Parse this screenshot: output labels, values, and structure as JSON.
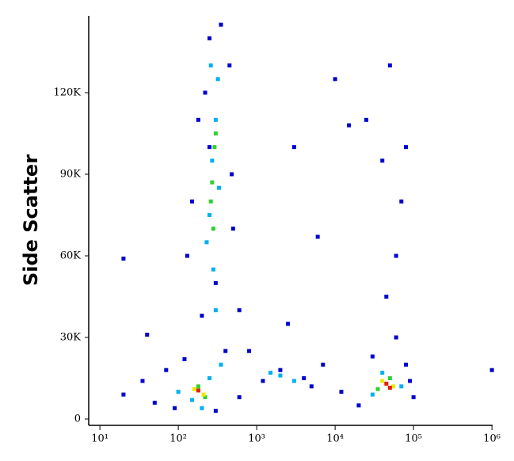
{
  "chart_data": {
    "type": "scatter",
    "y_label": "Side Scatter",
    "xscale": "log",
    "xlim": [
      7.2,
      1020000
    ],
    "ylim": [
      -2330,
      148250
    ],
    "xticks": [
      {
        "value": 10,
        "label": "10¹"
      },
      {
        "value": 100,
        "label": "10²"
      },
      {
        "value": 1000,
        "label": "10³"
      },
      {
        "value": 10000,
        "label": "10⁴"
      },
      {
        "value": 100000,
        "label": "10⁵"
      },
      {
        "value": 1000000,
        "label": "10⁶"
      }
    ],
    "yticks": [
      0,
      {
        "value": 30000,
        "label": "30K"
      },
      {
        "value": 60000,
        "label": "60K"
      },
      {
        "value": 90000,
        "label": "90K"
      },
      {
        "value": 120000,
        "label": "120K"
      }
    ],
    "series": [
      {
        "color": "#0000d0",
        "x": [
          20,
          35,
          50,
          70,
          90,
          120,
          300,
          600,
          800,
          600,
          130,
          150,
          180,
          450,
          500,
          350,
          250,
          2000,
          1200,
          5000,
          7000,
          4000,
          12000,
          20000,
          80000,
          100000,
          90000,
          30000,
          60000,
          45000,
          70000,
          50000,
          25000,
          15000,
          6000,
          3000,
          20,
          1000000,
          40,
          2500,
          80000,
          40000,
          10000,
          60000,
          300,
          400,
          200,
          250,
          220,
          480
        ],
        "values": [
          9000,
          14000,
          6000,
          18000,
          4000,
          22000,
          3000,
          8000,
          25000,
          40000,
          60000,
          80000,
          110000,
          130000,
          70000,
          145000,
          140000,
          18000,
          14000,
          12000,
          20000,
          15000,
          10000,
          5000,
          20000,
          8000,
          14000,
          23000,
          30000,
          45000,
          80000,
          130000,
          110000,
          108000,
          67000,
          100000,
          59000,
          18000,
          31000,
          35000,
          100000,
          95000,
          125000,
          60000,
          50000,
          25000,
          38000,
          100000,
          120000,
          90000
        ]
      },
      {
        "color": "#00b0f0",
        "x": [
          150,
          250,
          200,
          100,
          300,
          280,
          250,
          300,
          320,
          270,
          2000,
          3000,
          1500,
          40000,
          70000,
          30000,
          350,
          230,
          330,
          260
        ],
        "values": [
          7000,
          15000,
          4000,
          10000,
          40000,
          55000,
          75000,
          110000,
          125000,
          95000,
          16000,
          14000,
          17000,
          17000,
          12000,
          9000,
          20000,
          65000,
          85000,
          130000
        ]
      },
      {
        "color": "#30d030",
        "x": [
          180,
          220,
          270,
          290,
          260,
          300,
          50000,
          35000,
          280
        ],
        "values": [
          12000,
          8000,
          87000,
          100000,
          80000,
          105000,
          15000,
          11000,
          70000
        ]
      },
      {
        "color": "#e8e800",
        "x": [
          160,
          210,
          40000,
          55000
        ],
        "values": [
          11000,
          9000,
          14000,
          12000
        ]
      },
      {
        "color": "#e02000",
        "x": [
          180,
          45000,
          50000
        ],
        "values": [
          10500,
          13000,
          11500
        ]
      }
    ]
  }
}
